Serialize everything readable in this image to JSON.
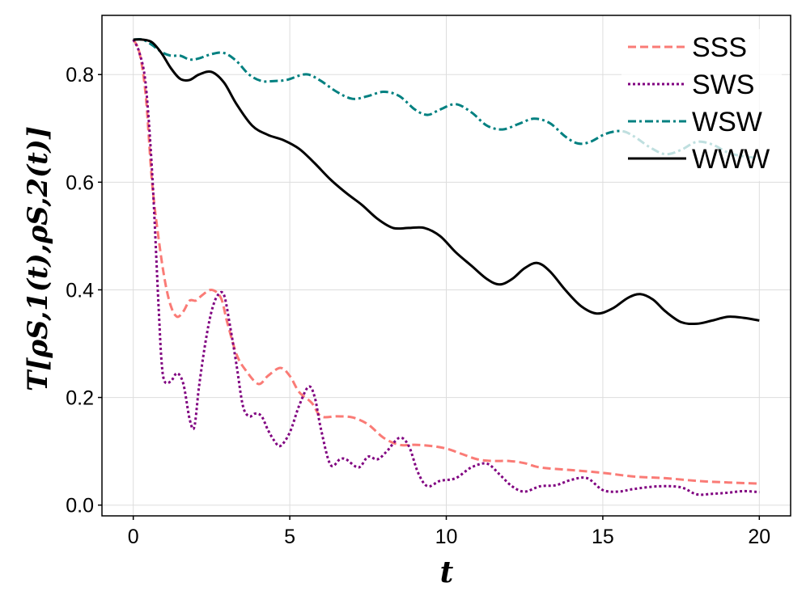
{
  "chart_data": {
    "type": "line",
    "title": "",
    "xlabel": "t",
    "ylabel": "T[ρS,1(t),ρS,2(t)]",
    "xlim": [
      -1,
      21
    ],
    "ylim": [
      -0.02,
      0.91
    ],
    "xticks": [
      0,
      5,
      10,
      15,
      20
    ],
    "yticks": [
      0.0,
      0.2,
      0.4,
      0.6,
      0.8
    ],
    "xtick_labels": [
      "0",
      "5",
      "10",
      "15",
      "20"
    ],
    "ytick_labels": [
      "0.0",
      "0.2",
      "0.4",
      "0.6",
      "0.8"
    ],
    "grid": true,
    "legend_position": "top-right",
    "series": [
      {
        "name": "SSS",
        "color": "#FA7B76",
        "style": "dashed",
        "x": [
          0,
          0.2,
          0.4,
          0.6,
          0.8,
          1.0,
          1.2,
          1.4,
          1.6,
          1.8,
          2.0,
          2.2,
          2.5,
          2.8,
          3.0,
          3.3,
          3.6,
          4.0,
          4.3,
          4.7,
          5.0,
          5.3,
          5.7,
          6.0,
          6.5,
          7.0,
          7.5,
          8.0,
          8.5,
          9.0,
          9.5,
          10.0,
          10.5,
          11.0,
          11.5,
          12.0,
          12.5,
          13.0,
          14.0,
          15.0,
          16.0,
          17.0,
          18.0,
          19.0,
          20.0
        ],
        "y": [
          0.865,
          0.84,
          0.76,
          0.6,
          0.5,
          0.42,
          0.37,
          0.35,
          0.36,
          0.38,
          0.38,
          0.39,
          0.4,
          0.385,
          0.34,
          0.28,
          0.25,
          0.225,
          0.24,
          0.255,
          0.24,
          0.21,
          0.19,
          0.165,
          0.165,
          0.163,
          0.15,
          0.125,
          0.112,
          0.112,
          0.11,
          0.105,
          0.095,
          0.085,
          0.082,
          0.082,
          0.078,
          0.07,
          0.065,
          0.06,
          0.053,
          0.05,
          0.045,
          0.042,
          0.04
        ]
      },
      {
        "name": "SWS",
        "color": "#800080",
        "style": "dotted",
        "x": [
          0,
          0.2,
          0.4,
          0.6,
          0.8,
          0.9,
          1.0,
          1.2,
          1.4,
          1.6,
          1.8,
          1.95,
          2.1,
          2.3,
          2.5,
          2.7,
          2.9,
          3.1,
          3.3,
          3.5,
          3.7,
          3.9,
          4.1,
          4.3,
          4.5,
          4.7,
          5.0,
          5.3,
          5.6,
          5.8,
          6.0,
          6.3,
          6.6,
          6.8,
          7.2,
          7.5,
          7.8,
          8.1,
          8.5,
          8.8,
          9.1,
          9.4,
          9.8,
          10.3,
          10.8,
          11.3,
          11.7,
          12.1,
          12.5,
          13.0,
          13.5,
          14.0,
          14.5,
          15.0,
          15.5,
          16.0,
          16.8,
          17.5,
          18.0,
          18.5,
          19.0,
          19.5,
          20.0
        ],
        "y": [
          0.865,
          0.84,
          0.78,
          0.62,
          0.38,
          0.27,
          0.23,
          0.23,
          0.245,
          0.225,
          0.16,
          0.145,
          0.22,
          0.3,
          0.36,
          0.39,
          0.39,
          0.33,
          0.26,
          0.185,
          0.165,
          0.17,
          0.165,
          0.14,
          0.12,
          0.11,
          0.135,
          0.185,
          0.22,
          0.2,
          0.14,
          0.075,
          0.085,
          0.085,
          0.07,
          0.09,
          0.085,
          0.1,
          0.125,
          0.11,
          0.06,
          0.035,
          0.045,
          0.05,
          0.07,
          0.077,
          0.057,
          0.035,
          0.025,
          0.035,
          0.037,
          0.047,
          0.05,
          0.028,
          0.025,
          0.03,
          0.035,
          0.033,
          0.02,
          0.021,
          0.023,
          0.026,
          0.024
        ]
      },
      {
        "name": "WSW",
        "color": "#008080",
        "style": "dashdot",
        "x": [
          0,
          0.3,
          0.6,
          0.9,
          1.2,
          1.5,
          1.8,
          2.1,
          2.5,
          2.9,
          3.3,
          3.7,
          4.1,
          4.5,
          4.9,
          5.3,
          5.6,
          6.0,
          6.5,
          7.0,
          7.5,
          8.0,
          8.5,
          9.0,
          9.4,
          9.8,
          10.3,
          10.8,
          11.3,
          11.8,
          12.3,
          12.8,
          13.3,
          13.8,
          14.2,
          14.6,
          15.1,
          15.6,
          16.0,
          16.5,
          17.0,
          17.5,
          18.0,
          18.5,
          19.0,
          19.5,
          20.0
        ],
        "y": [
          0.865,
          0.865,
          0.855,
          0.842,
          0.835,
          0.835,
          0.828,
          0.83,
          0.838,
          0.84,
          0.825,
          0.8,
          0.788,
          0.788,
          0.79,
          0.798,
          0.8,
          0.788,
          0.768,
          0.755,
          0.76,
          0.768,
          0.76,
          0.735,
          0.725,
          0.735,
          0.745,
          0.73,
          0.705,
          0.698,
          0.708,
          0.718,
          0.71,
          0.685,
          0.672,
          0.675,
          0.69,
          0.695,
          0.685,
          0.665,
          0.652,
          0.66,
          0.675,
          0.67,
          0.655,
          0.648,
          0.645
        ]
      },
      {
        "name": "WWW",
        "color": "#000000",
        "style": "solid",
        "x": [
          0,
          0.3,
          0.6,
          0.9,
          1.2,
          1.5,
          1.8,
          2.1,
          2.5,
          2.9,
          3.3,
          3.8,
          4.3,
          4.8,
          5.3,
          5.8,
          6.3,
          6.8,
          7.3,
          7.8,
          8.3,
          8.8,
          9.3,
          9.8,
          10.3,
          10.8,
          11.3,
          11.7,
          12.1,
          12.5,
          12.9,
          13.3,
          13.8,
          14.3,
          14.8,
          15.3,
          15.8,
          16.2,
          16.6,
          17.0,
          17.5,
          18.0,
          18.5,
          19.0,
          19.5,
          20.0
        ],
        "y": [
          0.865,
          0.865,
          0.86,
          0.84,
          0.812,
          0.792,
          0.79,
          0.8,
          0.805,
          0.785,
          0.745,
          0.705,
          0.688,
          0.678,
          0.662,
          0.635,
          0.605,
          0.58,
          0.558,
          0.532,
          0.515,
          0.515,
          0.515,
          0.5,
          0.47,
          0.445,
          0.42,
          0.41,
          0.42,
          0.44,
          0.45,
          0.435,
          0.4,
          0.37,
          0.356,
          0.365,
          0.385,
          0.392,
          0.382,
          0.36,
          0.34,
          0.337,
          0.343,
          0.35,
          0.348,
          0.343
        ]
      }
    ]
  }
}
